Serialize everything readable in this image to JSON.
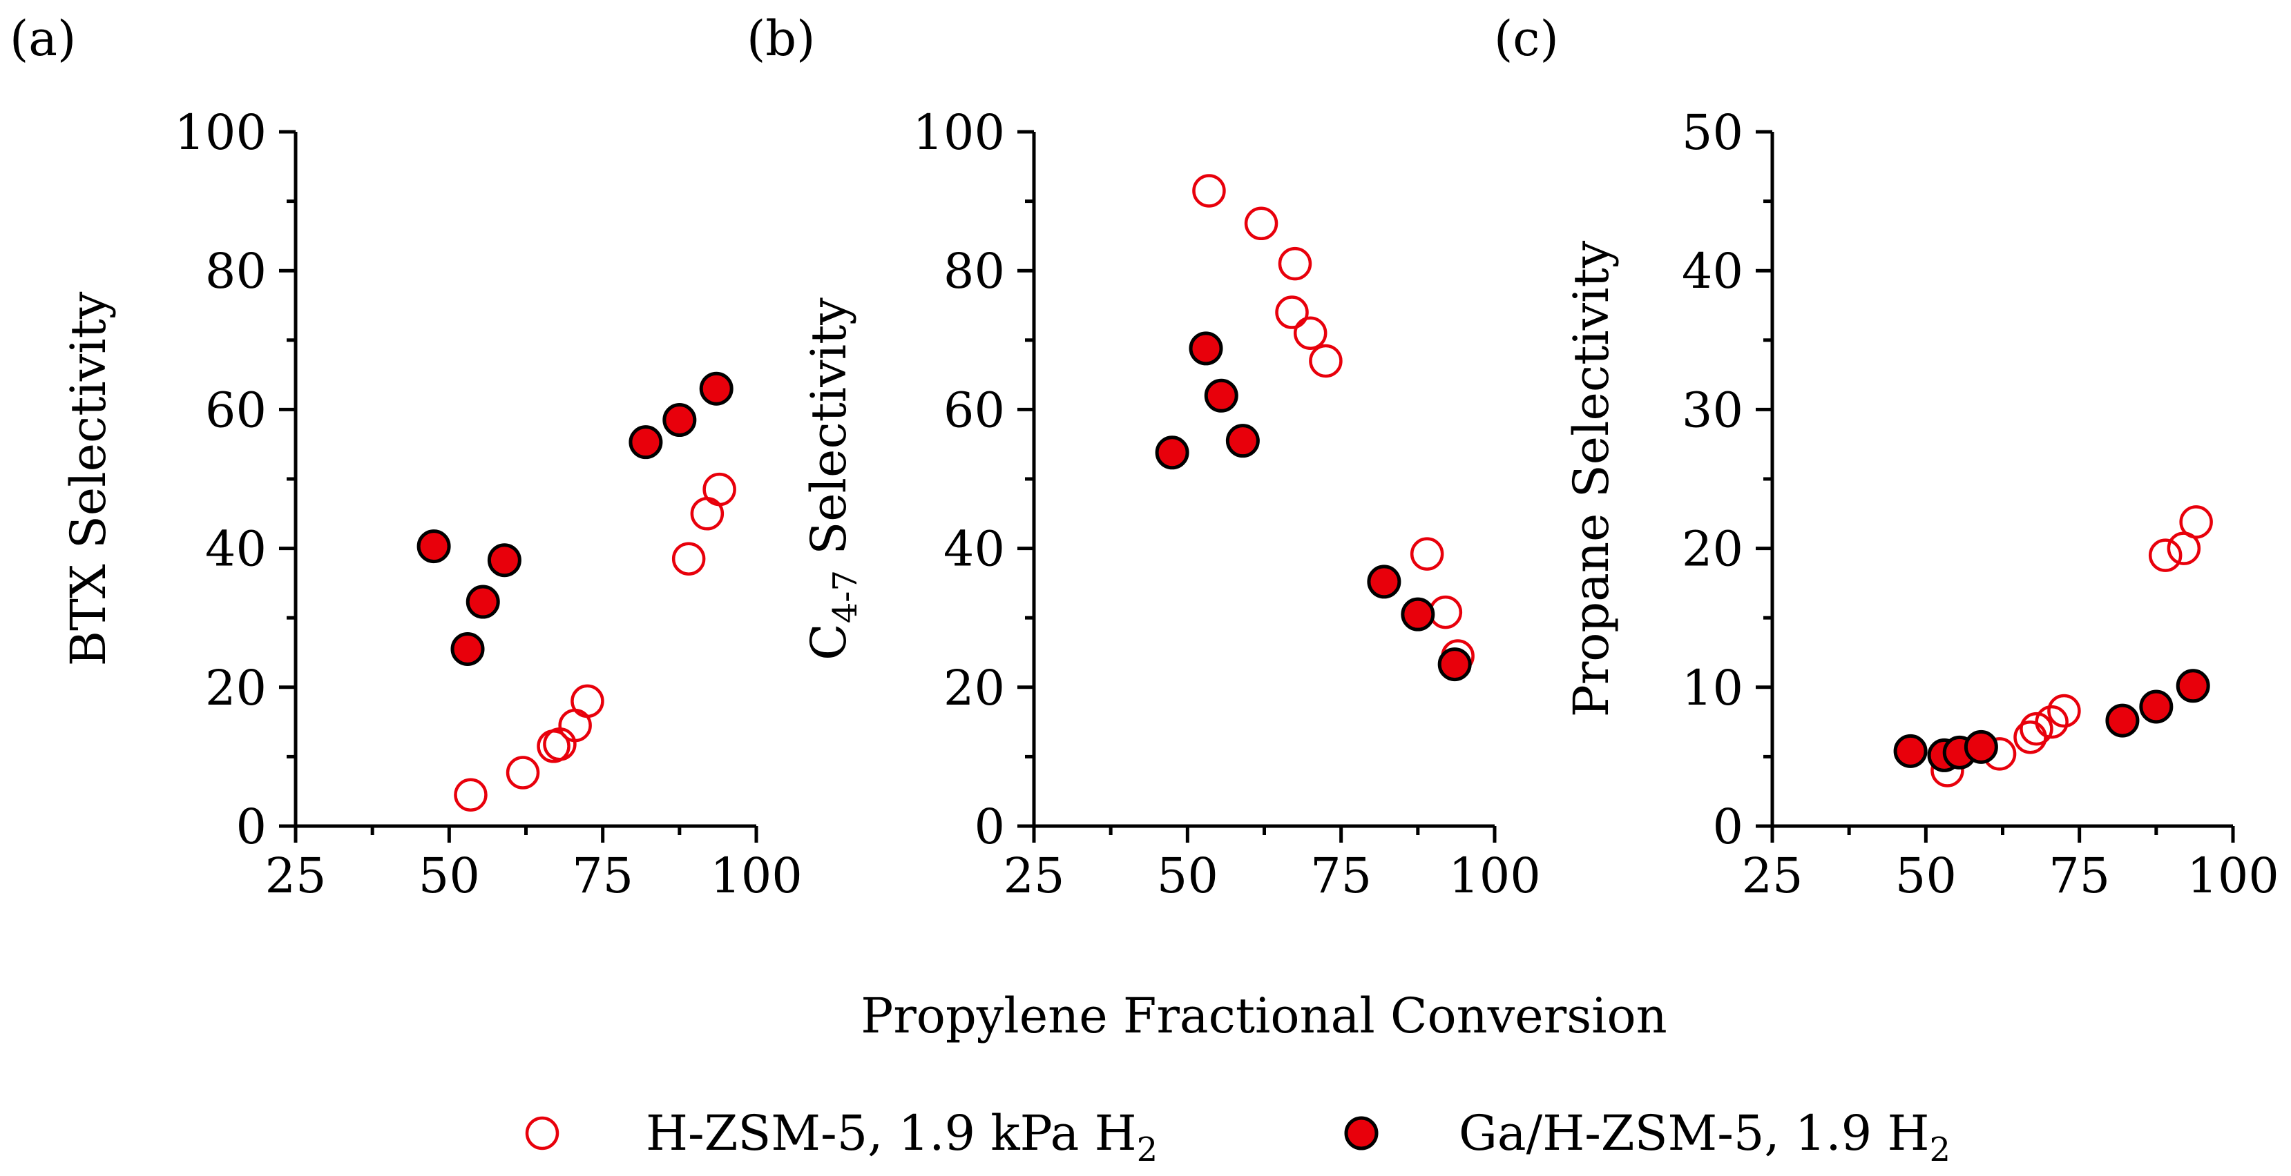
{
  "figure": {
    "shared_xlabel": "Propylene Fractional Conversion"
  },
  "legend": {
    "items": [
      {
        "label": "H-ZSM-5, 1.9 kPa H",
        "sub": "2",
        "style": "open",
        "color": "#e8000b"
      },
      {
        "label": "Ga/H-ZSM-5, 1.9 H",
        "sub": "2",
        "style": "filled",
        "color": "#e8000b"
      }
    ]
  },
  "chart_data": [
    {
      "panel_label": "(a)",
      "type": "scatter",
      "title": "",
      "xlabel": "Propylene Fractional Conversion",
      "ylabel": "BTX Selectivity",
      "ylabel_main": "BTX Selectivity",
      "ylabel_sub": "",
      "ylabel_tail": "",
      "xlim": [
        25,
        100
      ],
      "ylim": [
        0,
        100
      ],
      "xticks": [
        25,
        50,
        75,
        100
      ],
      "yticks": [
        0,
        20,
        40,
        60,
        80,
        100
      ],
      "grid": false,
      "series": [
        {
          "name": "H-ZSM-5, 1.9 kPa H2",
          "style": "open",
          "points": [
            [
              53.5,
              4.5
            ],
            [
              62,
              7.7
            ],
            [
              67,
              11.5
            ],
            [
              68,
              11.8
            ],
            [
              70.5,
              14.5
            ],
            [
              72.5,
              18
            ],
            [
              89,
              38.5
            ],
            [
              92,
              45
            ],
            [
              94,
              48.5
            ]
          ]
        },
        {
          "name": "Ga/H-ZSM-5, 1.9 H2",
          "style": "filled",
          "points": [
            [
              47.5,
              40.3
            ],
            [
              53,
              25.5
            ],
            [
              55.5,
              32.3
            ],
            [
              59,
              38.3
            ],
            [
              82,
              55.3
            ],
            [
              87.5,
              58.5
            ],
            [
              93.5,
              63
            ]
          ]
        }
      ]
    },
    {
      "panel_label": "(b)",
      "type": "scatter",
      "title": "",
      "xlabel": "Propylene Fractional Conversion",
      "ylabel": "C4-7 Selectivity",
      "ylabel_main": "C",
      "ylabel_sub": "4-7",
      "ylabel_tail": " Selectivity",
      "xlim": [
        25,
        100
      ],
      "ylim": [
        0,
        100
      ],
      "xticks": [
        25,
        50,
        75,
        100
      ],
      "yticks": [
        0,
        20,
        40,
        60,
        80,
        100
      ],
      "grid": false,
      "series": [
        {
          "name": "H-ZSM-5, 1.9 kPa H2",
          "style": "open",
          "points": [
            [
              53.5,
              91.5
            ],
            [
              62,
              86.8
            ],
            [
              67.5,
              81
            ],
            [
              67,
              74
            ],
            [
              70,
              71
            ],
            [
              72.5,
              67
            ],
            [
              89,
              39.2
            ],
            [
              92,
              30.8
            ],
            [
              94,
              24.5
            ]
          ]
        },
        {
          "name": "Ga/H-ZSM-5, 1.9 H2",
          "style": "filled",
          "points": [
            [
              47.5,
              53.8
            ],
            [
              53,
              68.8
            ],
            [
              55.5,
              62
            ],
            [
              59,
              55.5
            ],
            [
              82,
              35.2
            ],
            [
              87.5,
              30.5
            ],
            [
              93.5,
              23.3
            ]
          ]
        }
      ]
    },
    {
      "panel_label": "(c)",
      "type": "scatter",
      "title": "",
      "xlabel": "Propylene Fractional Conversion",
      "ylabel": "Propane Selectivity",
      "ylabel_main": "Propane Selectivity",
      "ylabel_sub": "",
      "ylabel_tail": "",
      "xlim": [
        25,
        100
      ],
      "ylim": [
        0,
        50
      ],
      "xticks": [
        25,
        50,
        75,
        100
      ],
      "yticks": [
        0,
        10,
        20,
        30,
        40,
        50
      ],
      "grid": false,
      "series": [
        {
          "name": "H-ZSM-5, 1.9 kPa H2",
          "style": "open",
          "points": [
            [
              53.5,
              4.0
            ],
            [
              62,
              5.2
            ],
            [
              67,
              6.4
            ],
            [
              68,
              7.0
            ],
            [
              70.5,
              7.5
            ],
            [
              72.5,
              8.3
            ],
            [
              89,
              19.5
            ],
            [
              92,
              20.0
            ],
            [
              94,
              21.9
            ]
          ]
        },
        {
          "name": "Ga/H-ZSM-5, 1.9 H2",
          "style": "filled",
          "points": [
            [
              47.5,
              5.4
            ],
            [
              53,
              5.1
            ],
            [
              55.5,
              5.3
            ],
            [
              59,
              5.7
            ],
            [
              82,
              7.6
            ],
            [
              87.5,
              8.6
            ],
            [
              93.5,
              10.1
            ]
          ]
        }
      ]
    }
  ]
}
